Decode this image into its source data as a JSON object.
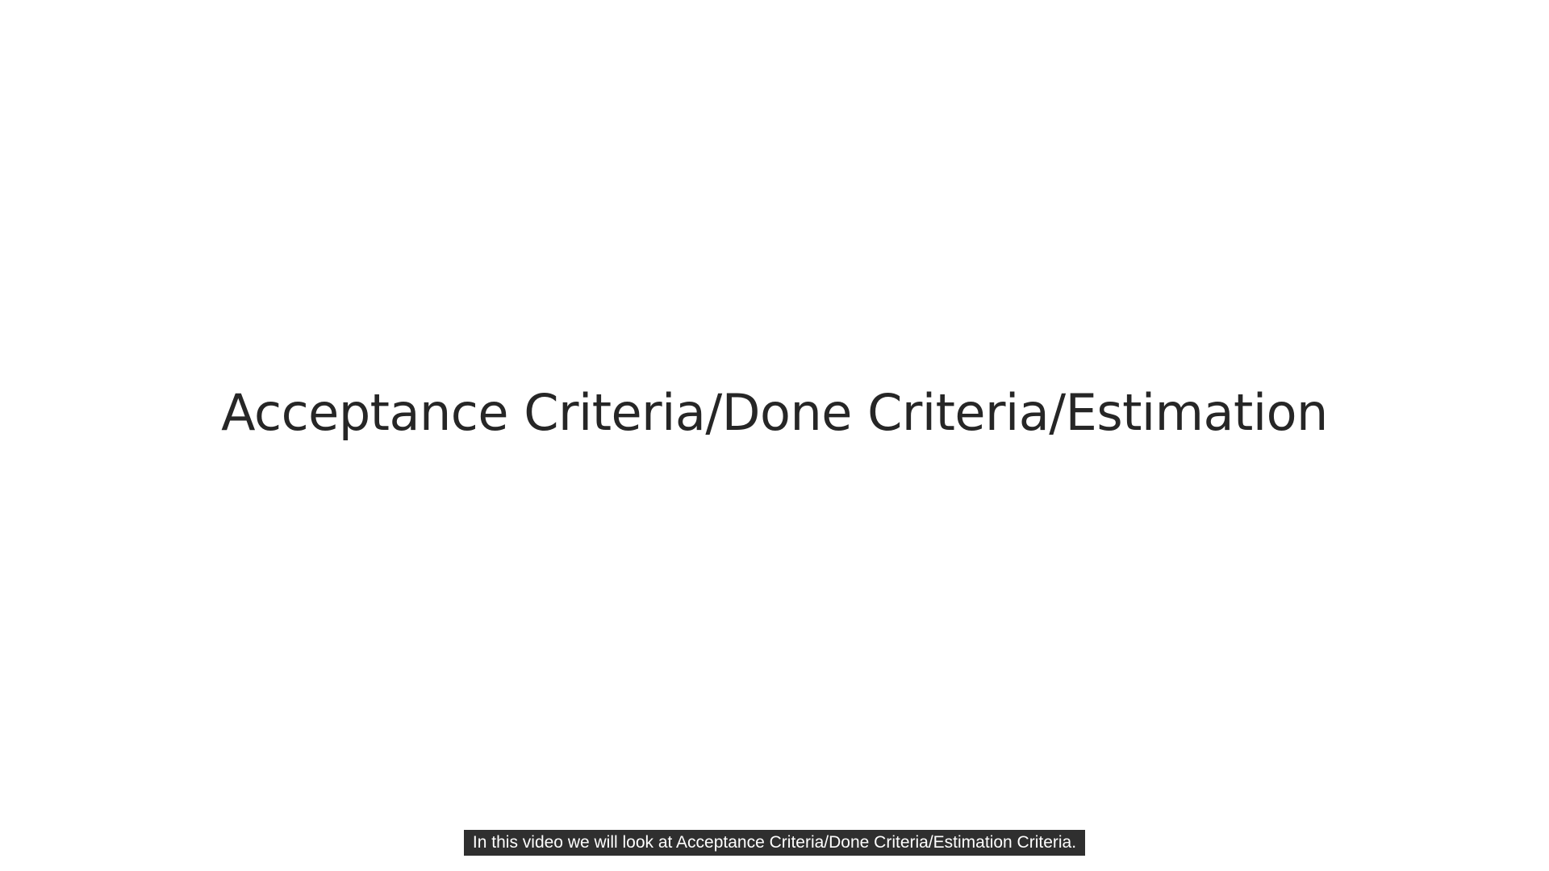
{
  "slide": {
    "title": "Acceptance Criteria/Done Criteria/Estimation"
  },
  "captions": {
    "text": "In this video we will look at Acceptance Criteria/Done Criteria/Estimation Criteria."
  },
  "colors": {
    "background": "#ffffff",
    "title_text": "#262626",
    "caption_bg": "#2f2f2f",
    "caption_text": "#ffffff"
  }
}
